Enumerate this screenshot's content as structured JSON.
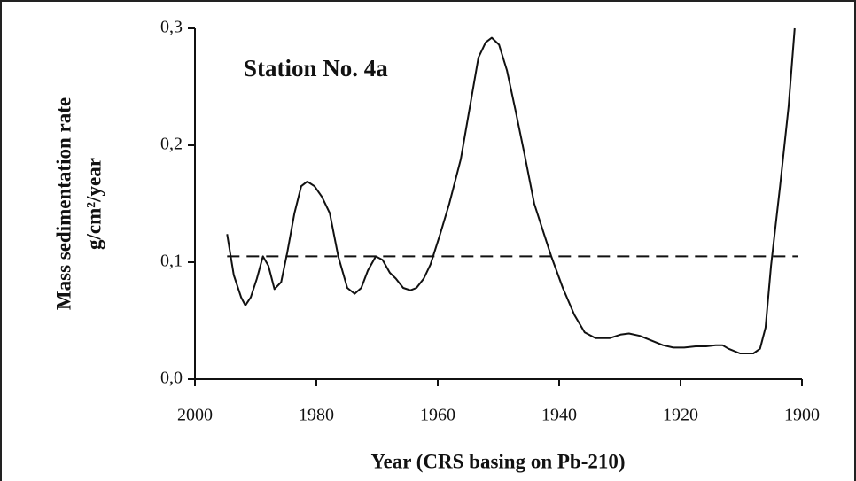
{
  "chart_data": {
    "type": "line",
    "title": "Station No. 4a",
    "x_label": "Year (CRS basing on Pb-210)",
    "y_label": [
      "Mass sedimentation rate",
      "g/cm²/year"
    ],
    "xlim": [
      2000,
      1900
    ],
    "xticks": [
      2000,
      1980,
      1960,
      1940,
      1920,
      1900
    ],
    "ylim": [
      0,
      0.3
    ],
    "yticks": [
      {
        "value": 0,
        "label": "0,0"
      },
      {
        "value": 0.1,
        "label": "0,1"
      },
      {
        "value": 0.2,
        "label": "0,2"
      },
      {
        "value": 0.3,
        "label": "0,3"
      }
    ],
    "reference_line": {
      "value": 0.105,
      "x": [
        1994.7,
        1900.7
      ],
      "style": "dashed"
    },
    "color": "#111111",
    "x": [
      1994.7,
      1993.6,
      1992.4,
      1991.7,
      1990.8,
      1989.8,
      1988.8,
      1987.9,
      1986.9,
      1985.8,
      1984.8,
      1983.6,
      1982.5,
      1981.5,
      1980.3,
      1979.1,
      1977.8,
      1976.4,
      1974.9,
      1973.7,
      1972.6,
      1971.5,
      1970.2,
      1969.1,
      1967.9,
      1966.9,
      1965.7,
      1964.5,
      1963.5,
      1962.3,
      1961.2,
      1959.6,
      1958.1,
      1956.2,
      1954.7,
      1953.3,
      1952.1,
      1951.1,
      1949.9,
      1948.6,
      1947.2,
      1945.7,
      1944.1,
      1942.8,
      1941.3,
      1939.4,
      1937.5,
      1935.8,
      1934.0,
      1931.7,
      1929.9,
      1928.5,
      1926.7,
      1924.8,
      1922.9,
      1921.2,
      1919.4,
      1917.5,
      1915.8,
      1914.2,
      1913.1,
      1912.1,
      1910.2,
      1908.0,
      1906.9,
      1906.0,
      1905.1,
      1903.6,
      1902.2,
      1901.2
    ],
    "values": [
      0.124,
      0.089,
      0.07,
      0.063,
      0.07,
      0.086,
      0.105,
      0.097,
      0.077,
      0.083,
      0.108,
      0.142,
      0.165,
      0.169,
      0.165,
      0.156,
      0.142,
      0.105,
      0.078,
      0.073,
      0.078,
      0.093,
      0.105,
      0.102,
      0.091,
      0.086,
      0.078,
      0.076,
      0.078,
      0.086,
      0.098,
      0.124,
      0.15,
      0.188,
      0.233,
      0.275,
      0.288,
      0.292,
      0.286,
      0.264,
      0.23,
      0.192,
      0.15,
      0.129,
      0.105,
      0.078,
      0.055,
      0.04,
      0.035,
      0.035,
      0.038,
      0.039,
      0.037,
      0.033,
      0.029,
      0.027,
      0.027,
      0.028,
      0.028,
      0.029,
      0.029,
      0.026,
      0.022,
      0.022,
      0.026,
      0.044,
      0.097,
      0.165,
      0.233,
      0.3
    ]
  }
}
